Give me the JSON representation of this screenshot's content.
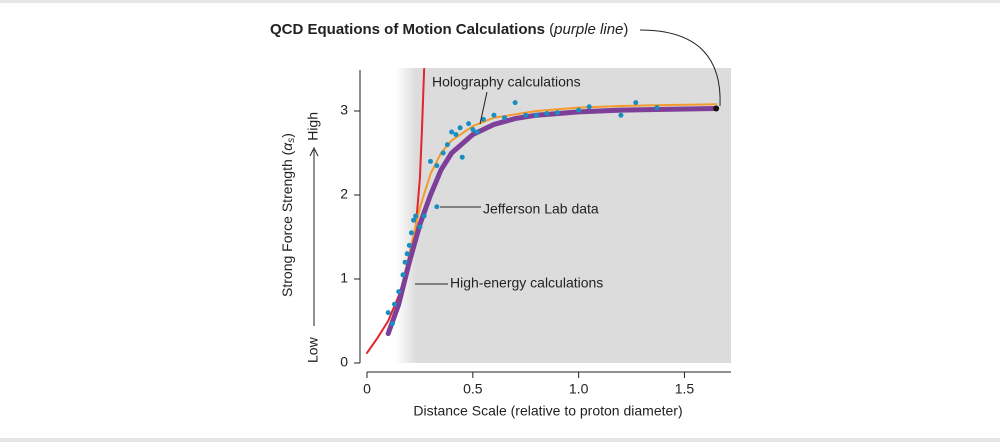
{
  "chart_data": {
    "type": "line",
    "title_parts": [
      "QCD Equations of Motion Calculations",
      " (",
      "purple line",
      ")"
    ],
    "xlabel": "Distance Scale (relative to proton diameter)",
    "ylabel_parts": [
      "Strong Force Strength (",
      "α",
      "s",
      ")"
    ],
    "low_label": "Low",
    "high_label": "High",
    "xlim": [
      0,
      1.72
    ],
    "ylim": [
      0,
      3.5
    ],
    "xticks": [
      0,
      0.5,
      {
        "value": 1,
        "label": "1.0"
      },
      1.5
    ],
    "yticks": [
      0,
      1,
      2,
      3
    ],
    "series": [
      {
        "name": "High-energy calculations",
        "color": "#e4232b",
        "kind": "line",
        "width": 2,
        "x": [
          0.0,
          0.05,
          0.1,
          0.15,
          0.2,
          0.23,
          0.25,
          0.26,
          0.27
        ],
        "values": [
          0.12,
          0.3,
          0.5,
          0.8,
          1.2,
          1.6,
          2.2,
          2.8,
          3.5
        ]
      },
      {
        "name": "Holography calculations",
        "color": "#f39a2b",
        "kind": "line",
        "width": 2,
        "x": [
          0.1,
          0.15,
          0.2,
          0.25,
          0.3,
          0.35,
          0.4,
          0.5,
          0.6,
          0.8,
          1.0,
          1.2,
          1.4,
          1.65
        ],
        "values": [
          0.35,
          0.75,
          1.3,
          1.85,
          2.25,
          2.5,
          2.65,
          2.82,
          2.92,
          3.0,
          3.04,
          3.06,
          3.07,
          3.08
        ]
      },
      {
        "color": "#7e3f98",
        "kind": "line",
        "width": 5,
        "x": [
          0.1,
          0.15,
          0.2,
          0.25,
          0.3,
          0.35,
          0.4,
          0.5,
          0.6,
          0.7,
          0.8,
          1.0,
          1.2,
          1.4,
          1.65
        ],
        "values": [
          0.35,
          0.7,
          1.2,
          1.65,
          2.0,
          2.3,
          2.5,
          2.72,
          2.84,
          2.91,
          2.95,
          2.99,
          3.01,
          3.02,
          3.03
        ]
      },
      {
        "name": "Jefferson Lab data",
        "color": "#1a8fbf",
        "kind": "scatter",
        "x": [
          0.1,
          0.12,
          0.13,
          0.15,
          0.17,
          0.18,
          0.19,
          0.2,
          0.21,
          0.22,
          0.23,
          0.25,
          0.27,
          0.3,
          0.33,
          0.33,
          0.36,
          0.38,
          0.4,
          0.42,
          0.44,
          0.45,
          0.48,
          0.5,
          0.52,
          0.55,
          0.6,
          0.65,
          0.7,
          0.75,
          0.8,
          0.85,
          0.9,
          1.0,
          1.05,
          1.2,
          1.27,
          1.37
        ],
        "values": [
          0.6,
          0.47,
          0.7,
          0.85,
          1.05,
          1.2,
          1.3,
          1.4,
          1.55,
          1.7,
          1.75,
          1.62,
          1.75,
          2.4,
          2.35,
          1.86,
          2.5,
          2.6,
          2.75,
          2.72,
          2.8,
          2.45,
          2.85,
          2.78,
          2.75,
          2.9,
          2.95,
          2.92,
          3.1,
          2.95,
          2.95,
          2.97,
          2.98,
          3.01,
          3.05,
          2.95,
          3.1,
          3.04
        ]
      }
    ]
  }
}
